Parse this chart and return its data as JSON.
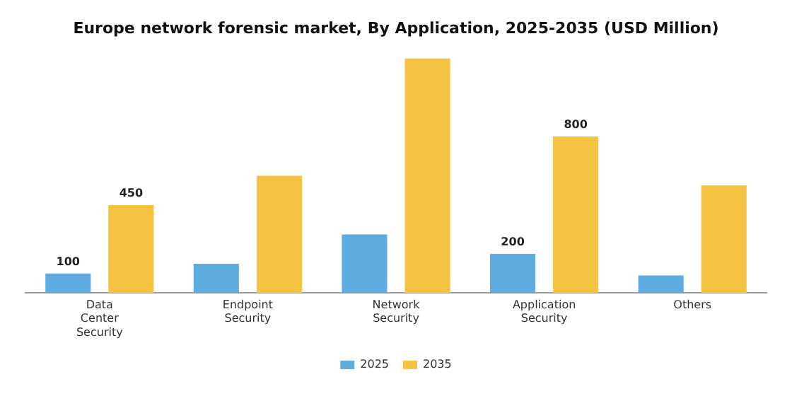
{
  "chart_data": {
    "type": "bar",
    "title": "Europe network forensic market, By Application, 2025-2035 (USD Million)",
    "categories": [
      "Data Center Security",
      "Endpoint Security",
      "Network Security",
      "Application Security",
      "Others"
    ],
    "series": [
      {
        "name": "2025",
        "color": "#5dade2",
        "values": [
          100,
          150,
          300,
          200,
          90
        ],
        "value_labels": [
          "100",
          null,
          null,
          "200",
          null
        ]
      },
      {
        "name": "2035",
        "color": "#f5c242",
        "values": [
          450,
          600,
          1200,
          800,
          550
        ],
        "value_labels": [
          "450",
          null,
          null,
          "800",
          null
        ]
      }
    ],
    "legend": "bottom",
    "grid": false
  }
}
